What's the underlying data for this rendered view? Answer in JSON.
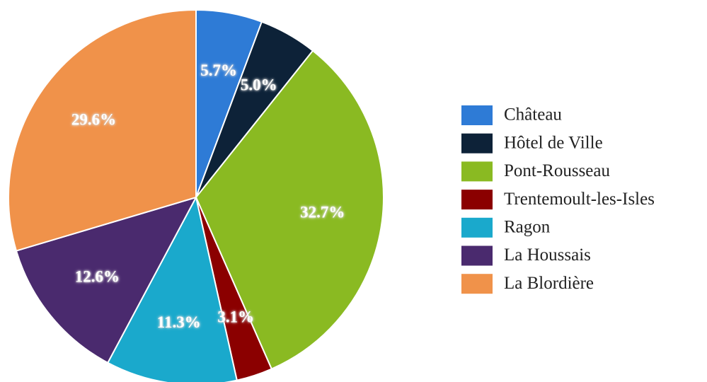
{
  "chart_data": {
    "type": "pie",
    "categories": [
      "Château",
      "Hôtel de Ville",
      "Pont-Rousseau",
      "Trentemoult-les-Isles",
      "Ragon",
      "La Houssais",
      "La Blordière"
    ],
    "values": [
      5.7,
      5.0,
      32.7,
      3.1,
      11.3,
      12.6,
      29.6
    ],
    "value_labels": [
      "5.7%",
      "5.0%",
      "32.7%",
      "3.1%",
      "11.3%",
      "12.6%",
      "29.6%"
    ],
    "colors": [
      "#2e7bd6",
      "#0d2238",
      "#8aba22",
      "#8b0000",
      "#1aa9cc",
      "#4a2a6e",
      "#f0924a"
    ],
    "legend": "right"
  }
}
